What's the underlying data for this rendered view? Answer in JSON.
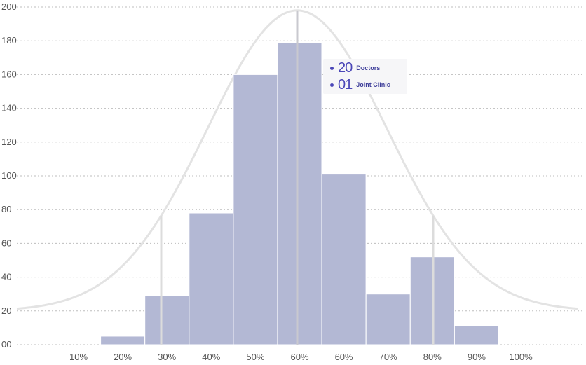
{
  "chart_data": {
    "type": "bar",
    "categories": [
      "10%",
      "20%",
      "30%",
      "40%",
      "50%",
      "60%",
      "60%",
      "70%",
      "80%",
      "90%",
      "100%"
    ],
    "values": [
      0,
      5,
      29,
      78,
      160,
      179,
      101,
      30,
      52,
      11,
      0
    ],
    "ylim": [
      0,
      200
    ],
    "yticks": [
      "00",
      "20",
      "40",
      "60",
      "80",
      "100",
      "120",
      "140",
      "160",
      "180",
      "200"
    ],
    "ytick_values": [
      0,
      20,
      40,
      60,
      80,
      100,
      120,
      140,
      160,
      180,
      200
    ],
    "grid": true,
    "overlay": "normal-distribution-curve",
    "colors": {
      "bar": "#b3b8d4",
      "curve": "#e3e3e3",
      "accent": "#4b47b8"
    }
  },
  "tooltip": {
    "items": [
      {
        "value": "20",
        "label": "Doctors"
      },
      {
        "value": "01",
        "label": "Joint Clinic"
      }
    ]
  }
}
